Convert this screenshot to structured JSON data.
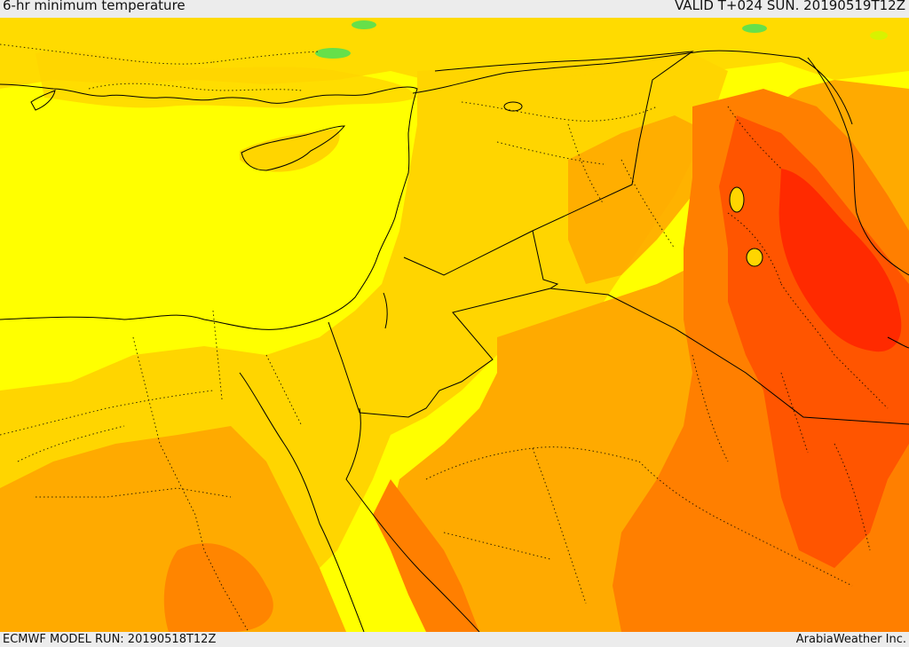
{
  "header": {
    "title": "6-hr minimum temperature",
    "valid": "VALID T+024 SUN. 20190519T12Z"
  },
  "footer": {
    "model_run": "ECMWF MODEL RUN: 20190518T12Z",
    "credit": "ArabiaWeather Inc."
  },
  "palette": {
    "band_1": "#66e04a",
    "band_2": "#d8f200",
    "band_3": "#ffff00",
    "band_4": "#ffd500",
    "band_5": "#ffaa00",
    "band_6": "#ff7f00",
    "band_7": "#ff5500",
    "band_8": "#ff2a00",
    "border_color": "#000000"
  }
}
